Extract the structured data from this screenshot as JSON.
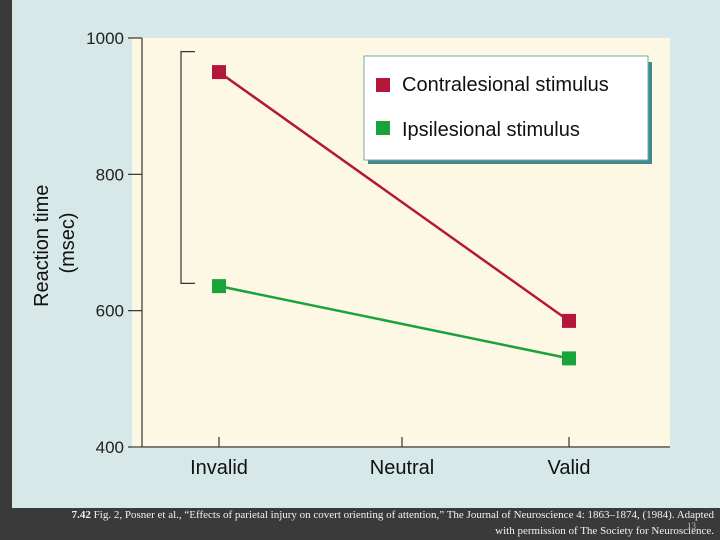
{
  "chart_data": {
    "type": "line",
    "categories": [
      "Invalid",
      "Neutral",
      "Valid"
    ],
    "ylabel_line1": "Reaction time",
    "ylabel_line2": "(msec)",
    "ylim": [
      400,
      1000
    ],
    "yticks": [
      "400",
      "600",
      "800",
      "1000"
    ],
    "legend_placement": "top-right",
    "series": [
      {
        "name": "Contralesional stimulus",
        "color": "#b5173a",
        "points": [
          {
            "x": "Invalid",
            "y": 950
          },
          {
            "x": "Valid",
            "y": 585
          }
        ]
      },
      {
        "name": "Ipsilesional stimulus",
        "color": "#19a33a",
        "points": [
          {
            "x": "Invalid",
            "y": 636
          },
          {
            "x": "Valid",
            "y": 530
          }
        ]
      }
    ],
    "bracket": {
      "y_top": 980,
      "y_bottom": 640
    }
  },
  "caption": {
    "fig_number": "7.42",
    "line1_text": " Fig. 2, Posner et al., “Effects of parietal injury on covert orienting of attention,” The Journal of Neuroscience 4: 1863–1874, (1984). Adapted",
    "line2_text": "with permission of The Society for Neuroscience."
  },
  "slide_number": "13",
  "colors": {
    "plot_bg": "#fdf8e4",
    "slide_bg": "#d6e8e7",
    "legend_shadow": "#3e8a8f"
  }
}
